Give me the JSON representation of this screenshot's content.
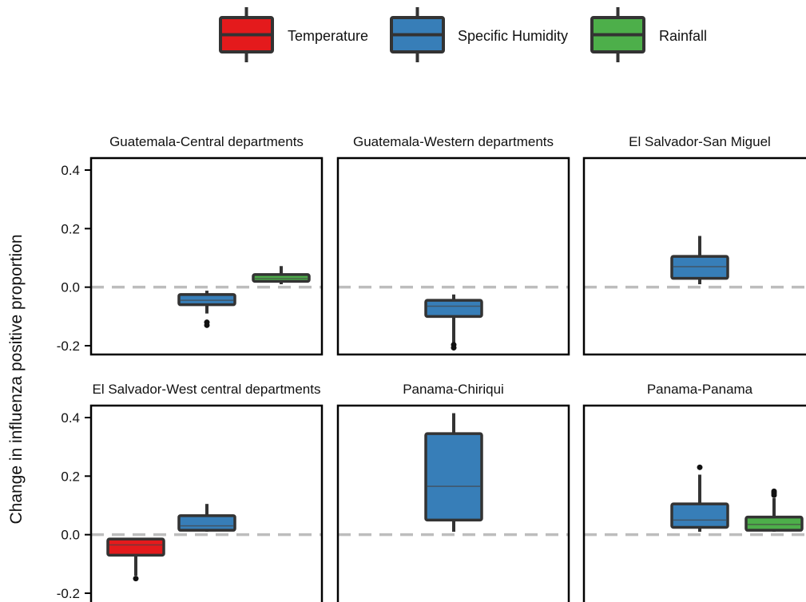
{
  "chart_data": {
    "type": "boxplot",
    "ylabel": "Change in influenza positive proportion",
    "ylim": [
      -0.2,
      0.4
    ],
    "yticks": [
      -0.2,
      0.0,
      0.2,
      0.4
    ],
    "ytick_labels": [
      "-0.2",
      "0.0",
      "0.2",
      "0.4"
    ],
    "reference_line": 0.0,
    "categories": [
      "Temperature",
      "Specific Humidity",
      "Rainfall"
    ],
    "legend": {
      "position": "top",
      "items": [
        {
          "name": "Temperature",
          "color": "#e41a1c"
        },
        {
          "name": "Specific Humidity",
          "color": "#377eb8"
        },
        {
          "name": "Rainfall",
          "color": "#4daf4a"
        }
      ]
    },
    "panels": [
      {
        "title": "Guatemala-Central departments",
        "boxes": [
          {
            "series": "Specific Humidity",
            "whisker_low": -0.09,
            "q1": -0.06,
            "median": -0.045,
            "q3": -0.025,
            "whisker_high": -0.012,
            "outliers": [
              -0.12,
              -0.13
            ]
          },
          {
            "series": "Rainfall",
            "whisker_low": 0.01,
            "q1": 0.02,
            "median": 0.03,
            "q3": 0.043,
            "whisker_high": 0.072,
            "outliers": []
          }
        ]
      },
      {
        "title": "Guatemala-Western departments",
        "boxes": [
          {
            "series": "Specific Humidity",
            "whisker_low": -0.19,
            "q1": -0.1,
            "median": -0.065,
            "q3": -0.045,
            "whisker_high": -0.025,
            "outliers": [
              -0.197,
              -0.207
            ]
          }
        ]
      },
      {
        "title": "El Salvador-San Miguel",
        "boxes": [
          {
            "series": "Specific Humidity",
            "whisker_low": 0.01,
            "q1": 0.03,
            "median": 0.07,
            "q3": 0.105,
            "whisker_high": 0.175,
            "outliers": []
          }
        ]
      },
      {
        "title": "El Salvador-West central departments",
        "boxes": [
          {
            "series": "Temperature",
            "whisker_low": -0.14,
            "q1": -0.07,
            "median": -0.035,
            "q3": -0.015,
            "whisker_high": -0.015,
            "outliers": [
              -0.15
            ]
          },
          {
            "series": "Specific Humidity",
            "whisker_low": 0.01,
            "q1": 0.015,
            "median": 0.03,
            "q3": 0.065,
            "whisker_high": 0.105,
            "outliers": []
          }
        ]
      },
      {
        "title": "Panama-Chiriqui",
        "boxes": [
          {
            "series": "Specific Humidity",
            "whisker_low": 0.01,
            "q1": 0.05,
            "median": 0.165,
            "q3": 0.345,
            "whisker_high": 0.415,
            "outliers": []
          }
        ]
      },
      {
        "title": "Panama-Panama",
        "boxes": [
          {
            "series": "Specific Humidity",
            "whisker_low": 0.01,
            "q1": 0.025,
            "median": 0.05,
            "q3": 0.105,
            "whisker_high": 0.205,
            "outliers": [
              0.23
            ]
          },
          {
            "series": "Rainfall",
            "whisker_low": 0.01,
            "q1": 0.015,
            "median": 0.035,
            "q3": 0.06,
            "whisker_high": 0.125,
            "outliers": [
              0.135,
              0.142,
              0.148
            ]
          }
        ]
      }
    ]
  }
}
